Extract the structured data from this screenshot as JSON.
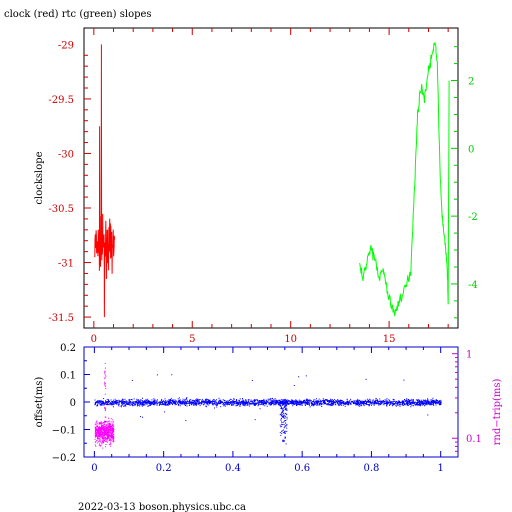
{
  "title": "clock (red) rtc (green) slopes",
  "footer": "2022-03-13  boson.physics.ubc.ca",
  "chart_data": [
    {
      "type": "line",
      "panel": "top",
      "ylabel": "clockslope",
      "x_ticks": [
        "0",
        "5",
        "10",
        "15"
      ],
      "x_tick_values": [
        0,
        5,
        10,
        15
      ],
      "xlim": [
        -0.5,
        18.5
      ],
      "ylim_left": [
        -31.6,
        -28.85
      ],
      "ylim_right": [
        -5.3,
        3.55
      ],
      "left_ticks": [
        "-29",
        "-29.5",
        "-30",
        "-30.5",
        "-31",
        "-31.5"
      ],
      "left_tick_values": [
        -29,
        -29.5,
        -30,
        -30.5,
        -31,
        -31.5
      ],
      "right_ticks": [
        "2",
        "0",
        "-2",
        "-4"
      ],
      "right_tick_values": [
        2,
        0,
        -2,
        -4
      ],
      "colors": {
        "left_axis": "#cc0000",
        "right_axis": "#00cc00",
        "frame": "#000000"
      },
      "series": [
        {
          "name": "clock",
          "color": "#ff0000",
          "axis": "left",
          "style": "noise-band",
          "x_range": [
            0.05,
            1.05
          ],
          "center": -30.85,
          "low": -31.5,
          "high": -29.0
        },
        {
          "name": "rtc",
          "color": "#00ff00",
          "axis": "right",
          "points": [
            [
              13.5,
              -3.5
            ],
            [
              13.7,
              -3.8
            ],
            [
              13.9,
              -3.2
            ],
            [
              14.1,
              -3.0
            ],
            [
              14.3,
              -3.3
            ],
            [
              14.5,
              -3.8
            ],
            [
              14.7,
              -3.6
            ],
            [
              14.9,
              -4.2
            ],
            [
              15.1,
              -4.6
            ],
            [
              15.3,
              -4.9
            ],
            [
              15.5,
              -4.5
            ],
            [
              15.7,
              -4.3
            ],
            [
              15.9,
              -4.0
            ],
            [
              16.1,
              -3.6
            ],
            [
              16.3,
              -1.0
            ],
            [
              16.45,
              1.0
            ],
            [
              16.6,
              1.8
            ],
            [
              16.8,
              1.5
            ],
            [
              17.0,
              2.3
            ],
            [
              17.2,
              2.8
            ],
            [
              17.35,
              3.1
            ],
            [
              17.45,
              2.5
            ],
            [
              17.6,
              -1.0
            ],
            [
              17.75,
              -2.4
            ],
            [
              17.85,
              -2.8
            ],
            [
              17.95,
              -3.5
            ],
            [
              18.0,
              -4.6
            ],
            [
              18.05,
              2.0
            ]
          ]
        }
      ]
    },
    {
      "type": "scatter",
      "panel": "bottom",
      "ylabel_left": "offset(ms)",
      "ylabel_right": "rnd−trip(ms)",
      "x_ticks": [
        "0",
        "0.2",
        "0.4",
        "0.6",
        "0.8",
        "1"
      ],
      "x_tick_values": [
        0,
        0.2,
        0.4,
        0.6,
        0.8,
        1
      ],
      "xlim": [
        -0.03,
        1.05
      ],
      "ylim_left": [
        -0.2,
        0.2
      ],
      "left_ticks": [
        "0.2",
        "0.1",
        "0",
        "−0.1",
        "−0.2"
      ],
      "left_tick_values": [
        0.2,
        0.1,
        0,
        -0.1,
        -0.2
      ],
      "right_scale": "log",
      "ylim_right": [
        0.06,
        1.2
      ],
      "right_ticks": [
        "1",
        "0.1"
      ],
      "right_tick_values": [
        1,
        0.1
      ],
      "colors": {
        "left_axis": "#0000cc",
        "right_axis": "#cc00cc"
      },
      "series": [
        {
          "name": "offset",
          "color": "#0000ff",
          "axis": "left",
          "style": "dense-scatter",
          "x_range": [
            0.0,
            1.0
          ],
          "center": 0.0,
          "spread": 0.012,
          "features": [
            {
              "x": 0.545,
              "low": -0.16,
              "high": 0.01
            },
            {
              "x": 0.04,
              "low": -0.03,
              "high": 0.04
            }
          ]
        },
        {
          "name": "rnd-trip",
          "color": "#ff00ff",
          "axis": "right",
          "style": "dense-scatter",
          "x_range": [
            0.0,
            0.055
          ],
          "center": 0.12,
          "spread_factor": 1.3,
          "spike": {
            "x": 0.03,
            "high": 1.0
          }
        }
      ]
    }
  ]
}
